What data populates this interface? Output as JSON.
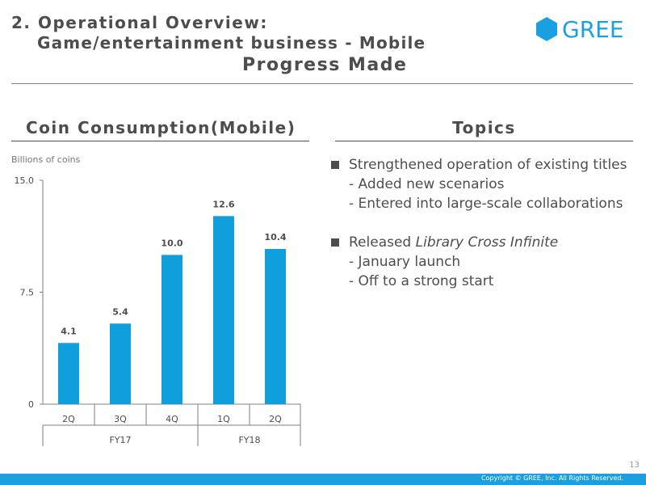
{
  "header": {
    "title_line1": "2. Operational Overview:",
    "title_line2": "Game/entertainment business - Mobile",
    "title_line3": "Progress Made",
    "logo_text": "GREE",
    "logo_icon": "hexagon-logo-icon",
    "brand_color": "#1a9fe0"
  },
  "left_section": {
    "heading": "Coin Consumption(Mobile)",
    "unit_label": "Billions of coins"
  },
  "chart_data": {
    "type": "bar",
    "categories": [
      "2Q",
      "3Q",
      "4Q",
      "1Q",
      "2Q"
    ],
    "groups": [
      {
        "label": "FY17",
        "categories": [
          "2Q",
          "3Q",
          "4Q"
        ]
      },
      {
        "label": "FY18",
        "categories": [
          "1Q",
          "2Q"
        ]
      }
    ],
    "values": [
      4.1,
      5.4,
      10.0,
      12.6,
      10.4
    ],
    "value_labels": [
      "4.1",
      "5.4",
      "10.0",
      "12.6",
      "10.4"
    ],
    "ylabel": "Billions of coins",
    "ylim": [
      0,
      15.0
    ],
    "yticks": [
      {
        "value": 0,
        "label": "0"
      },
      {
        "value": 7.5,
        "label": "7.5"
      },
      {
        "value": 15.0,
        "label": "15.0"
      }
    ],
    "bar_color": "#0e9fdc",
    "grid": false
  },
  "right_section": {
    "heading": "Topics",
    "topics": [
      {
        "text": "Strengthened operation of existing titles",
        "subs": [
          "- Added new scenarios",
          "- Entered into large-scale collaborations"
        ]
      },
      {
        "text_prefix": "Released ",
        "text_italic": "Library Cross Infinite",
        "subs": [
          "- January launch",
          "- Off to a strong start"
        ]
      }
    ]
  },
  "footer": {
    "page_number": "13",
    "copyright": "Copyright © GREE, Inc. All Rights Reserved."
  }
}
